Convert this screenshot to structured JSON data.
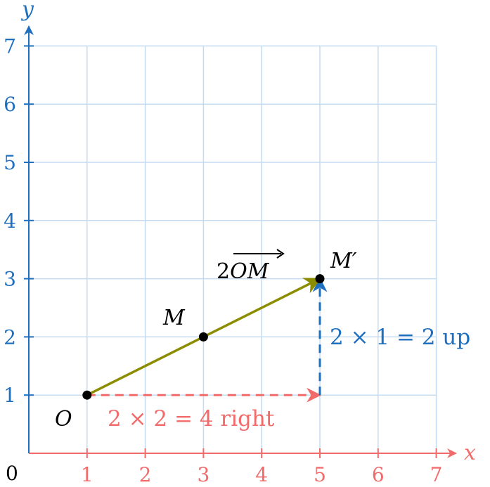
{
  "axes": {
    "x_label": "x",
    "y_label": "y",
    "origin_label": "0",
    "x_ticks": [
      "1",
      "2",
      "3",
      "4",
      "5",
      "6",
      "7"
    ],
    "y_ticks": [
      "1",
      "2",
      "3",
      "4",
      "5",
      "6",
      "7"
    ],
    "x_range": [
      0,
      7
    ],
    "y_range": [
      0,
      7
    ],
    "grid": true
  },
  "points": {
    "O": {
      "label": "O",
      "x": 1,
      "y": 1
    },
    "M": {
      "label": "M",
      "x": 3,
      "y": 2
    },
    "M_prime": {
      "label": "M′",
      "x": 5,
      "y": 3
    }
  },
  "vector": {
    "label_prefix": "2",
    "label_letters": "OM",
    "from": [
      1,
      1
    ],
    "to": [
      5,
      3
    ]
  },
  "steps": {
    "horizontal": {
      "text": "2 × 2 = 4 right",
      "from": [
        1,
        1
      ],
      "to": [
        5,
        1
      ]
    },
    "vertical": {
      "text": "2 × 1 = 2 up",
      "from": [
        5,
        1
      ],
      "to": [
        5,
        3
      ]
    }
  },
  "colors": {
    "x_axis": "#f26b6b",
    "y_axis": "#1f6fbf",
    "grid": "#c5dcf0",
    "vector": "#8c8c00",
    "horizontal_step": "#f26b6b",
    "vertical_step": "#1f6fbf",
    "point": "#000000"
  }
}
